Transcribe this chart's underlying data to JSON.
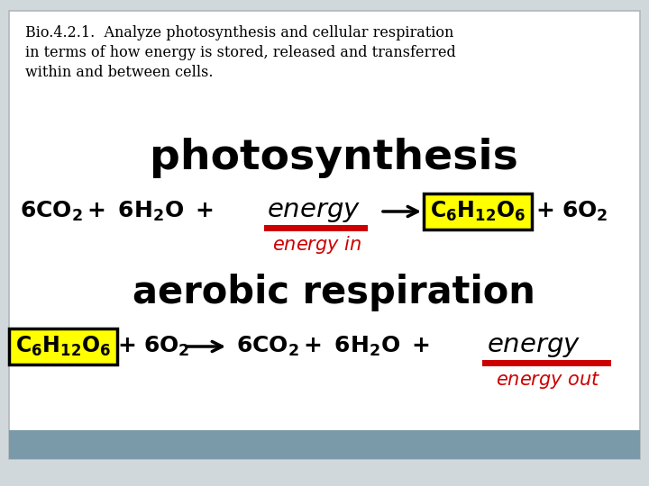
{
  "bg_color": "#d0d8dc",
  "slide_bg": "#ffffff",
  "border_color": "#b0b8bc",
  "header_line1": "Bio.4.2.1.  Analyze photosynthesis and cellular respiration",
  "header_line2": "in terms of how energy is stored, released and transferred",
  "header_line3": "within and between cells.",
  "photosynthesis_title": "photosynthesis",
  "aerobic_title": "aerobic respiration",
  "yellow_fill": "#ffff00",
  "red_color": "#cc0000",
  "black_color": "#000000",
  "bottom_bar_color": "#7a9aaa"
}
